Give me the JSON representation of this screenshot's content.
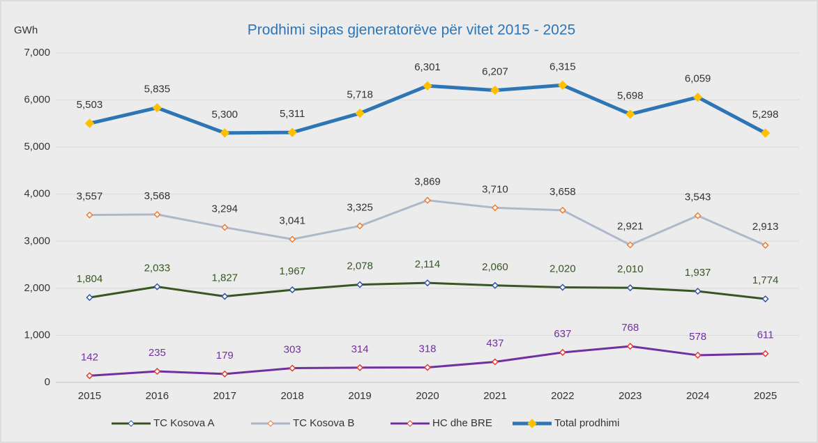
{
  "chart_data": {
    "type": "line",
    "title": "Prodhimi sipas gjeneratorëve për vitet 2015 - 2025",
    "y_label": "GWh",
    "categories": [
      "2015",
      "2016",
      "2017",
      "2018",
      "2019",
      "2020",
      "2021",
      "2022",
      "2023",
      "2024",
      "2025"
    ],
    "ylim": [
      0,
      7000
    ],
    "yticks": [
      0,
      {
        "value": 1000,
        "label": "1,000"
      },
      {
        "value": 2000,
        "label": "2,000"
      },
      {
        "value": 3000,
        "label": "3,000"
      },
      {
        "value": 4000,
        "label": "4,000"
      },
      {
        "value": 5000,
        "label": "5,000"
      },
      {
        "value": 6000,
        "label": "6,000"
      },
      {
        "value": 7000,
        "label": "7,000"
      }
    ],
    "grid": true,
    "legend": "bottom",
    "series": [
      {
        "name": "TC Kosova A",
        "color": "#375623",
        "marker_color": "#2f55a4",
        "label_color": "#375623",
        "line_width": 3,
        "values": [
          1804,
          2033,
          1827,
          1967,
          2078,
          2114,
          2060,
          2020,
          2010,
          1937,
          1774
        ],
        "value_labels": [
          "1,804",
          "2,033",
          "1,827",
          "1,967",
          "2,078",
          "2,114",
          "2,060",
          "2,020",
          "2,010",
          "1,937",
          "1,774"
        ]
      },
      {
        "name": "TC Kosova B",
        "color": "#adb9ca",
        "marker_color": "#ed7d31",
        "label_color": "#333333",
        "line_width": 3,
        "values": [
          3557,
          3568,
          3294,
          3041,
          3325,
          3869,
          3710,
          3658,
          2921,
          3543,
          2913
        ],
        "value_labels": [
          "3,557",
          "3,568",
          "3,294",
          "3,041",
          "3,325",
          "3,869",
          "3,710",
          "3,658",
          "2,921",
          "3,543",
          "2,913"
        ]
      },
      {
        "name": "HC dhe BRE",
        "color": "#7030a0",
        "marker_color": "#e03c31",
        "label_color": "#7030a0",
        "line_width": 3,
        "values": [
          142,
          235,
          179,
          303,
          314,
          318,
          437,
          637,
          768,
          578,
          611
        ],
        "value_labels": [
          "142",
          "235",
          "179",
          "303",
          "314",
          "318",
          "437",
          "637",
          "768",
          "578",
          "611"
        ]
      },
      {
        "name": "Total prodhimi",
        "color": "#2e75b6",
        "marker_color": "#ffc000",
        "label_color": "#333333",
        "line_width": 5,
        "values": [
          5503,
          5835,
          5300,
          5311,
          5718,
          6301,
          6207,
          6315,
          5698,
          6059,
          5298
        ],
        "value_labels": [
          "5,503",
          "5,835",
          "5,300",
          "5,311",
          "5,718",
          "6,301",
          "6,207",
          "6,315",
          "5,698",
          "6,059",
          "5,298"
        ]
      }
    ]
  }
}
